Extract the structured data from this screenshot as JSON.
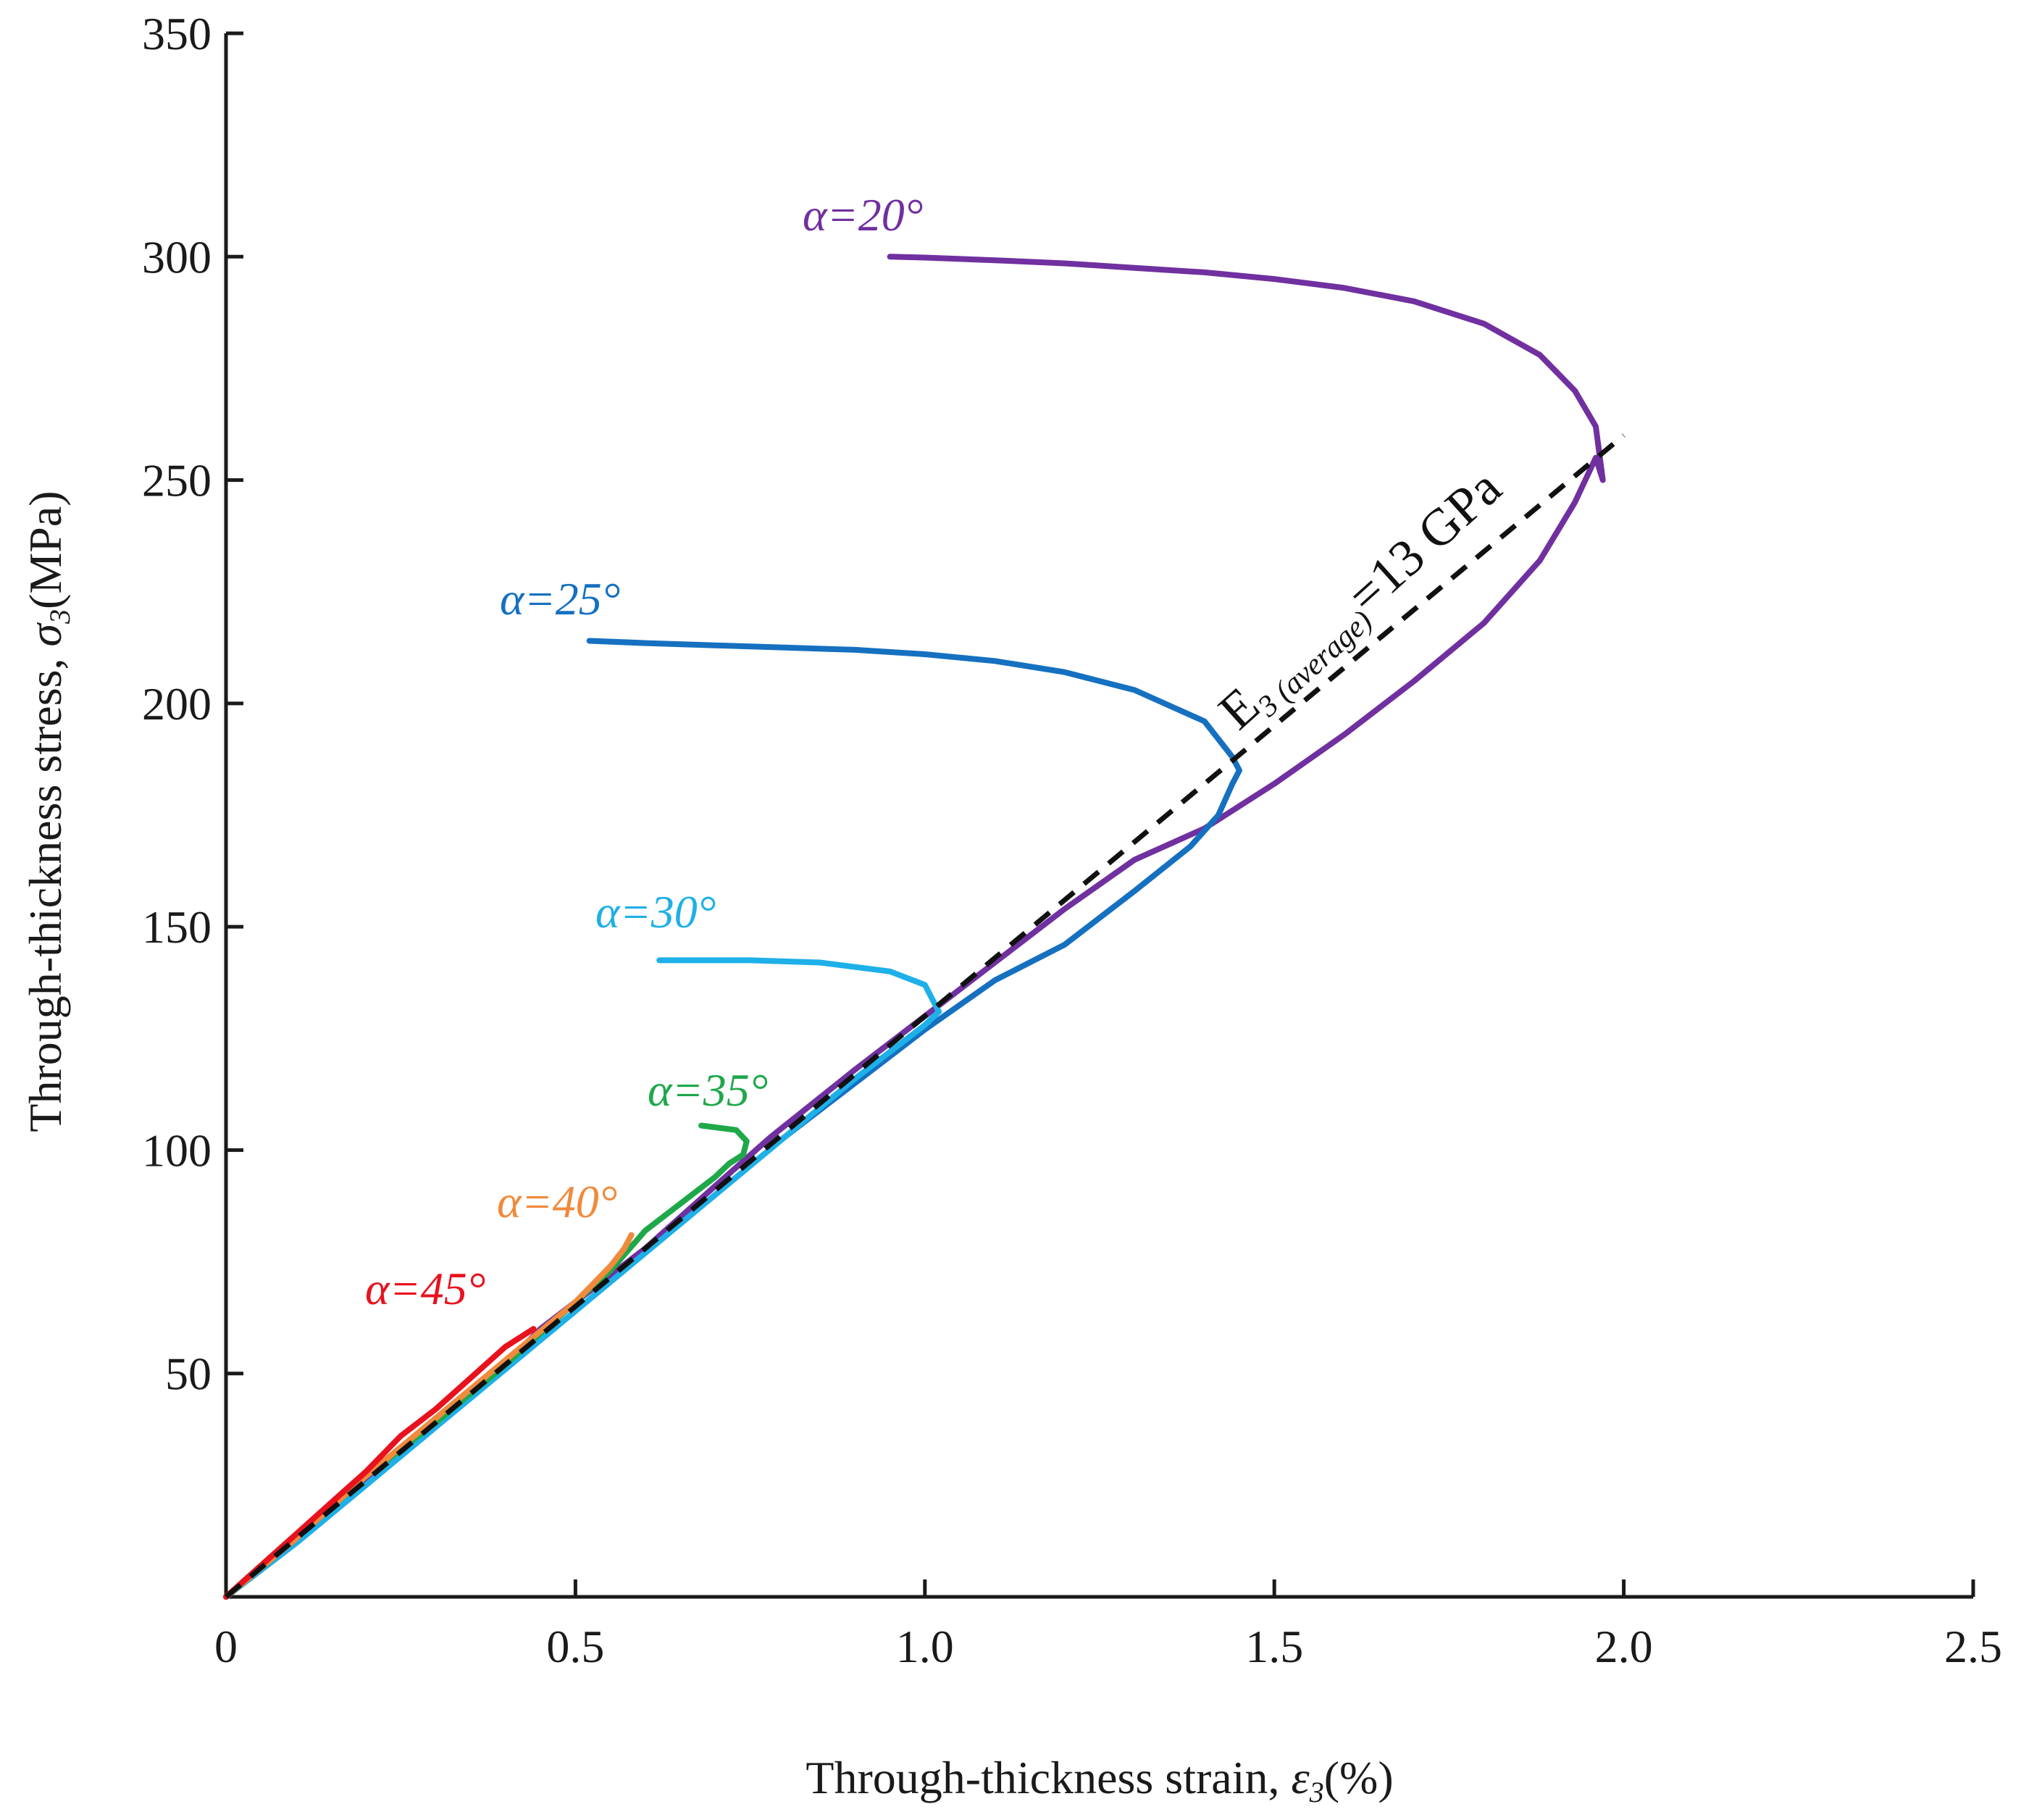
{
  "chart_data": {
    "type": "line",
    "title": "",
    "xlabel": "Through-thickness strain, ε3 (%)",
    "ylabel": "Through-thickness stress, σ3 (MPa)",
    "xlabel_parts": {
      "pre": "Through-thickness strain, ",
      "sym": "ε",
      "sub": "3",
      "post": "(%)"
    },
    "ylabel_parts": {
      "pre": "Through-thickness stress, ",
      "sym": "σ",
      "sub": "3",
      "post": "(MPa)"
    },
    "xlim": [
      0,
      2.5
    ],
    "ylim": [
      0,
      350
    ],
    "xticks": [
      0,
      0.5,
      1.0,
      1.5,
      2.0,
      2.5
    ],
    "xtick_labels": [
      "0",
      "0.5",
      "1.0",
      "1.5",
      "2.0",
      "2.5"
    ],
    "yticks": [
      50,
      100,
      150,
      200,
      250,
      300,
      350
    ],
    "ytick_labels": [
      "50",
      "100",
      "150",
      "200",
      "250",
      "300",
      "350"
    ],
    "grid": false,
    "legend": "none (inline labels)",
    "series": [
      {
        "name": "α=20°",
        "color": "#7030a0",
        "x": [
          0,
          0.1,
          0.2,
          0.3,
          0.4,
          0.45,
          0.5,
          0.6,
          0.7,
          0.78,
          0.9,
          1.0,
          1.1,
          1.2,
          1.3,
          1.4,
          1.5,
          1.6,
          1.7,
          1.8,
          1.88,
          1.93,
          1.96,
          1.97,
          1.96,
          1.93,
          1.88,
          1.8,
          1.7,
          1.6,
          1.5,
          1.4,
          1.3,
          1.2,
          1.1,
          1.0,
          0.95
        ],
        "y": [
          0,
          13,
          26,
          39,
          52,
          60,
          66,
          78,
          92,
          103,
          118,
          130,
          142,
          154,
          165,
          172,
          182,
          193,
          205,
          218,
          232,
          245,
          255,
          250,
          262,
          270,
          278,
          285,
          290,
          293,
          295,
          296.5,
          297.5,
          298.5,
          299.2,
          299.8,
          300
        ]
      },
      {
        "name": "α=25°",
        "color": "#1570c0",
        "x": [
          0,
          0.1,
          0.2,
          0.3,
          0.4,
          0.5,
          0.6,
          0.7,
          0.8,
          0.9,
          1.0,
          1.1,
          1.2,
          1.3,
          1.38,
          1.42,
          1.44,
          1.45,
          1.44,
          1.43,
          1.4,
          1.3,
          1.2,
          1.1,
          1.0,
          0.9,
          0.8,
          0.7,
          0.6,
          0.52
        ],
        "y": [
          0,
          12,
          25,
          38,
          51,
          64,
          77,
          90,
          103,
          115,
          127,
          138,
          146,
          158,
          168,
          175,
          182,
          185,
          188,
          190,
          196,
          203,
          207,
          209.5,
          211,
          212,
          212.5,
          213,
          213.5,
          214
        ]
      },
      {
        "name": "α=30°",
        "color": "#1eb0e8",
        "x": [
          0,
          0.1,
          0.2,
          0.3,
          0.4,
          0.5,
          0.6,
          0.7,
          0.8,
          0.9,
          1.0,
          1.02,
          1.01,
          1.0,
          0.95,
          0.85,
          0.75,
          0.65,
          0.62
        ],
        "y": [
          0,
          12,
          25,
          38,
          51,
          64,
          77,
          90,
          103,
          116,
          128,
          131,
          134,
          137,
          140,
          142,
          142.5,
          142.5,
          142.5
        ]
      },
      {
        "name": "α=35°",
        "color": "#1fa84a",
        "x": [
          0,
          0.1,
          0.2,
          0.3,
          0.4,
          0.5,
          0.55,
          0.6,
          0.65,
          0.7,
          0.72,
          0.74,
          0.745,
          0.73,
          0.68
        ],
        "y": [
          0,
          13,
          27,
          39,
          52,
          66,
          73,
          82,
          88,
          94,
          97,
          99,
          102,
          104.5,
          105.5
        ]
      },
      {
        "name": "α=40°",
        "color": "#f08a3c",
        "x": [
          0,
          0.1,
          0.2,
          0.3,
          0.4,
          0.5,
          0.55,
          0.57,
          0.58
        ],
        "y": [
          0,
          13,
          27,
          40,
          53,
          66,
          74,
          78,
          81
        ]
      },
      {
        "name": "α=45°",
        "color": "#e8121e",
        "x": [
          0,
          0.05,
          0.1,
          0.15,
          0.2,
          0.25,
          0.3,
          0.35,
          0.4,
          0.44
        ],
        "y": [
          0,
          7,
          14,
          21,
          28,
          36,
          42,
          49,
          56,
          60
        ]
      }
    ],
    "reference_line": {
      "name": "E3 (average) = 13 GPa",
      "style": "dashed",
      "color": "#111111",
      "slope_gpa": 13,
      "x": [
        0,
        2.0
      ],
      "y": [
        0,
        260
      ]
    },
    "annotations": {
      "e3_label": {
        "main": "E",
        "sub": "3 (average)",
        "rest": "=13 GPa"
      },
      "series_labels": [
        {
          "text": "α=20°",
          "color": "#7030a0"
        },
        {
          "text": "α=25°",
          "color": "#1570c0"
        },
        {
          "text": "α=30°",
          "color": "#1eb0e8"
        },
        {
          "text": "α=35°",
          "color": "#1fa84a"
        },
        {
          "text": "α=40°",
          "color": "#f08a3c"
        },
        {
          "text": "α=45°",
          "color": "#e8121e"
        }
      ]
    }
  }
}
